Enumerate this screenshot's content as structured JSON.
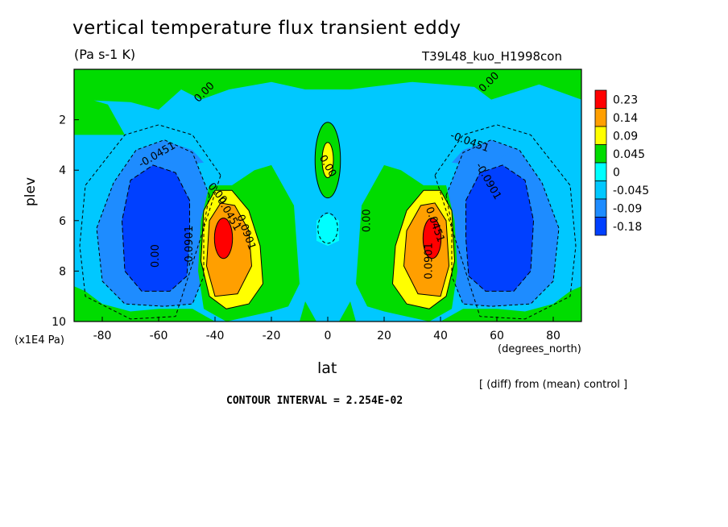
{
  "title": "vertical temperature flux transient eddy",
  "units": "(Pa s-1 K)",
  "run_label": "T39L48_kuo_H1998con",
  "diff_note": "[ (diff) from (mean) control ]",
  "contour_interval": "CONTOUR INTERVAL = 2.254E-02",
  "y_units": "(x1E4 Pa)",
  "x_units": "(degrees_north)",
  "chart_data": {
    "type": "heatmap",
    "title": "vertical temperature flux transient eddy",
    "xlabel": "lat",
    "ylabel": "plev",
    "xlim": [
      -90,
      90
    ],
    "ylim": [
      10,
      0
    ],
    "x_ticks": [
      -80,
      -60,
      -40,
      -20,
      0,
      20,
      40,
      60,
      80
    ],
    "x_tick_labels": [
      "-80",
      "-60",
      "-40",
      "-20",
      "0",
      "20",
      "40",
      "60",
      "80"
    ],
    "y_ticks": [
      2,
      4,
      6,
      8,
      10
    ],
    "y_tick_labels": [
      "2",
      "4",
      "6",
      "8",
      "10"
    ],
    "grid": false,
    "legend_position": "right",
    "colorbar": {
      "levels": [
        "0.23",
        "0.14",
        "0.09",
        "0.045",
        "0",
        "-0.045",
        "-0.09",
        "-0.18"
      ],
      "colors": [
        "#ff0000",
        "#ff9f00",
        "#ffff00",
        "#00dc00",
        "#00ffff",
        "#00c8ff",
        "#1e8cff",
        "#0040ff"
      ]
    },
    "contour_labels": [
      "0.00",
      "0.00",
      "-0.0451",
      "-0.0451",
      "0.00",
      "0.0451",
      "0.0901",
      "-0.0901",
      "0.00",
      "0.00",
      "0.0451",
      "0.0901",
      "-0.0901",
      "0.00"
    ],
    "structures": [
      {
        "name": "southern positive maximum",
        "lat": -37,
        "plev": 6.7,
        "value": 0.23
      },
      {
        "name": "northern positive maximum",
        "lat": 37,
        "plev": 6.7,
        "value": 0.23
      },
      {
        "name": "southern negative minimum",
        "lat": -58,
        "plev": 6.5,
        "value": -0.18
      },
      {
        "name": "northern negative minimum",
        "lat": 58,
        "plev": 6.3,
        "value": -0.18
      },
      {
        "name": "equatorial upper positive",
        "lat": 0,
        "plev": 3.5,
        "value": 0.09
      }
    ]
  }
}
